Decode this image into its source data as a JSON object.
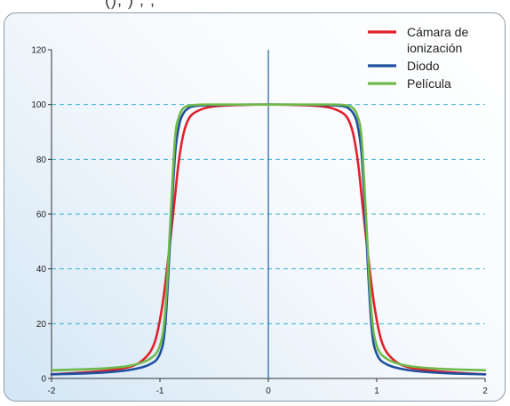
{
  "clipped_header": "(), ) , ,",
  "chart_data": {
    "type": "line",
    "xlim": [
      -2,
      2
    ],
    "ylim": [
      0,
      120
    ],
    "x_ticks": [
      "-2",
      "-1",
      "0",
      "1",
      "2"
    ],
    "y_ticks": [
      "0",
      "20",
      "40",
      "60",
      "80",
      "100",
      "120"
    ],
    "grid": "horizontal dashed at 20, 40, 60, 80, 100",
    "legend_position": "top-right",
    "legend": [
      {
        "label_lines": [
          "Cámara de",
          "ionización"
        ],
        "color": "#e0202a"
      },
      {
        "label_lines": [
          "Diodo"
        ],
        "color": "#1f4f9e"
      },
      {
        "label_lines": [
          "Película"
        ],
        "color": "#6fb94a"
      }
    ],
    "series": [
      {
        "name": "Cámara de ionización",
        "color": "#e0202a",
        "x": [
          -2.0,
          -1.6,
          -1.3,
          -1.15,
          -1.05,
          -0.98,
          -0.92,
          -0.87,
          -0.83,
          -0.79,
          -0.75,
          -0.7,
          -0.6,
          -0.5,
          -0.3,
          0.0,
          0.3,
          0.5,
          0.6,
          0.7,
          0.75,
          0.79,
          0.83,
          0.87,
          0.92,
          0.98,
          1.05,
          1.15,
          1.3,
          1.6,
          2.0
        ],
        "y": [
          1.5,
          2.5,
          4.0,
          7.0,
          13.0,
          26.0,
          45.0,
          63.0,
          78.0,
          88.0,
          93.5,
          96.5,
          98.5,
          99.3,
          99.8,
          100.0,
          99.8,
          99.3,
          98.5,
          96.5,
          93.5,
          88.0,
          78.0,
          63.0,
          45.0,
          26.0,
          13.0,
          7.0,
          4.0,
          2.5,
          1.5
        ]
      },
      {
        "name": "Diodo",
        "color": "#1f4f9e",
        "x": [
          -2.0,
          -1.6,
          -1.3,
          -1.1,
          -1.0,
          -0.95,
          -0.9,
          -0.86,
          -0.82,
          -0.78,
          -0.74,
          -0.7,
          -0.6,
          -0.4,
          0.0,
          0.4,
          0.6,
          0.7,
          0.74,
          0.78,
          0.82,
          0.86,
          0.9,
          0.95,
          1.0,
          1.1,
          1.3,
          1.6,
          2.0
        ],
        "y": [
          1.5,
          2.0,
          3.0,
          5.0,
          9.0,
          20.0,
          55.0,
          82.0,
          93.0,
          97.0,
          98.6,
          99.3,
          99.7,
          99.9,
          100.0,
          99.9,
          99.7,
          99.3,
          98.6,
          97.0,
          93.0,
          82.0,
          55.0,
          20.0,
          9.0,
          5.0,
          3.0,
          2.0,
          1.5
        ]
      },
      {
        "name": "Película",
        "color": "#6fb94a",
        "x": [
          -2.0,
          -1.6,
          -1.3,
          -1.1,
          -1.0,
          -0.95,
          -0.9,
          -0.86,
          -0.82,
          -0.78,
          -0.74,
          -0.7,
          -0.6,
          -0.4,
          0.0,
          0.4,
          0.6,
          0.7,
          0.74,
          0.78,
          0.82,
          0.86,
          0.9,
          0.95,
          1.0,
          1.1,
          1.3,
          1.6,
          2.0
        ],
        "y": [
          3.0,
          3.5,
          4.5,
          7.0,
          12.0,
          25.0,
          60.0,
          88.0,
          96.0,
          98.8,
          99.5,
          99.8,
          100.0,
          100.0,
          100.0,
          100.0,
          100.0,
          99.8,
          99.5,
          98.8,
          96.0,
          88.0,
          60.0,
          25.0,
          12.0,
          7.0,
          4.5,
          3.5,
          3.0
        ]
      }
    ]
  }
}
